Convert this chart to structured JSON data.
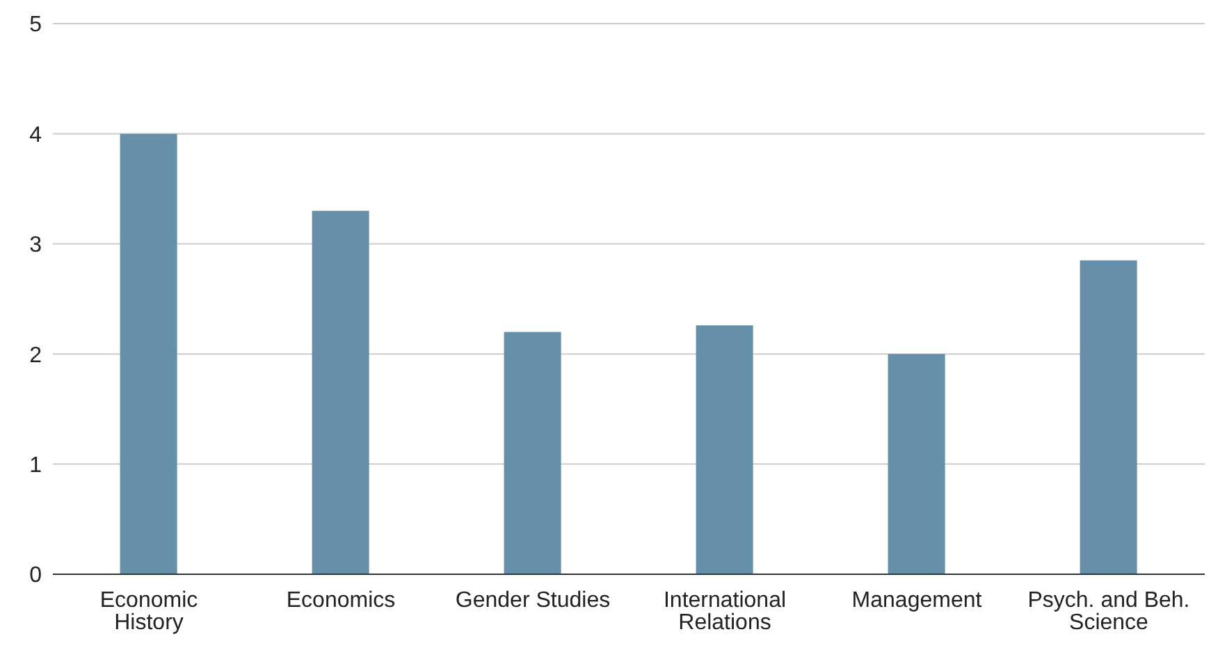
{
  "chart_data": {
    "type": "bar",
    "categories": [
      "Economic History",
      "Economics",
      "Gender Studies",
      "International Relations",
      "Management",
      "Psych. and Beh. Science"
    ],
    "values": [
      4.0,
      3.3,
      2.2,
      2.26,
      2.0,
      2.85
    ],
    "color": "#6690aa",
    "ylim": [
      0,
      5
    ],
    "yticks": [
      0,
      1,
      2,
      3,
      4,
      5
    ],
    "grid": "y"
  }
}
